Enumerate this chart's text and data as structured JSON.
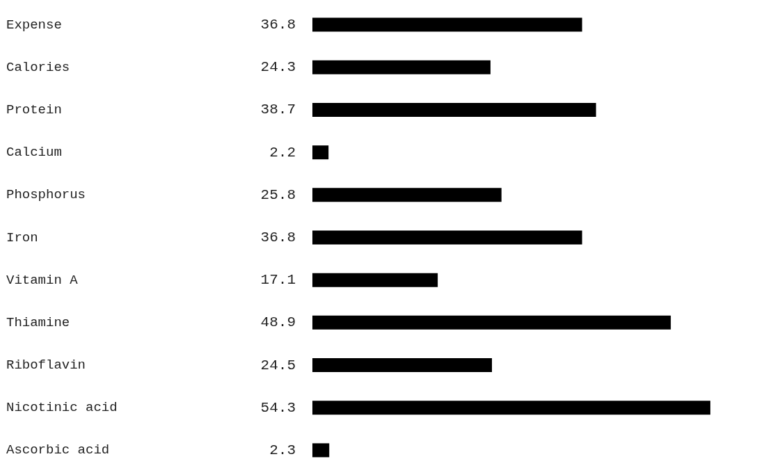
{
  "chart_data": {
    "type": "bar",
    "orientation": "horizontal",
    "data_labels": true,
    "categories": [
      "Expense",
      "Calories",
      "Protein",
      "Calcium",
      "Phosphorus",
      "Iron",
      "Vitamin A",
      "Thiamine",
      "Riboflavin",
      "Nicotinic acid",
      "Ascorbic acid"
    ],
    "values": [
      36.8,
      24.3,
      38.7,
      2.2,
      25.8,
      36.8,
      17.1,
      48.9,
      24.5,
      54.3,
      2.3
    ],
    "color": "#000000"
  }
}
